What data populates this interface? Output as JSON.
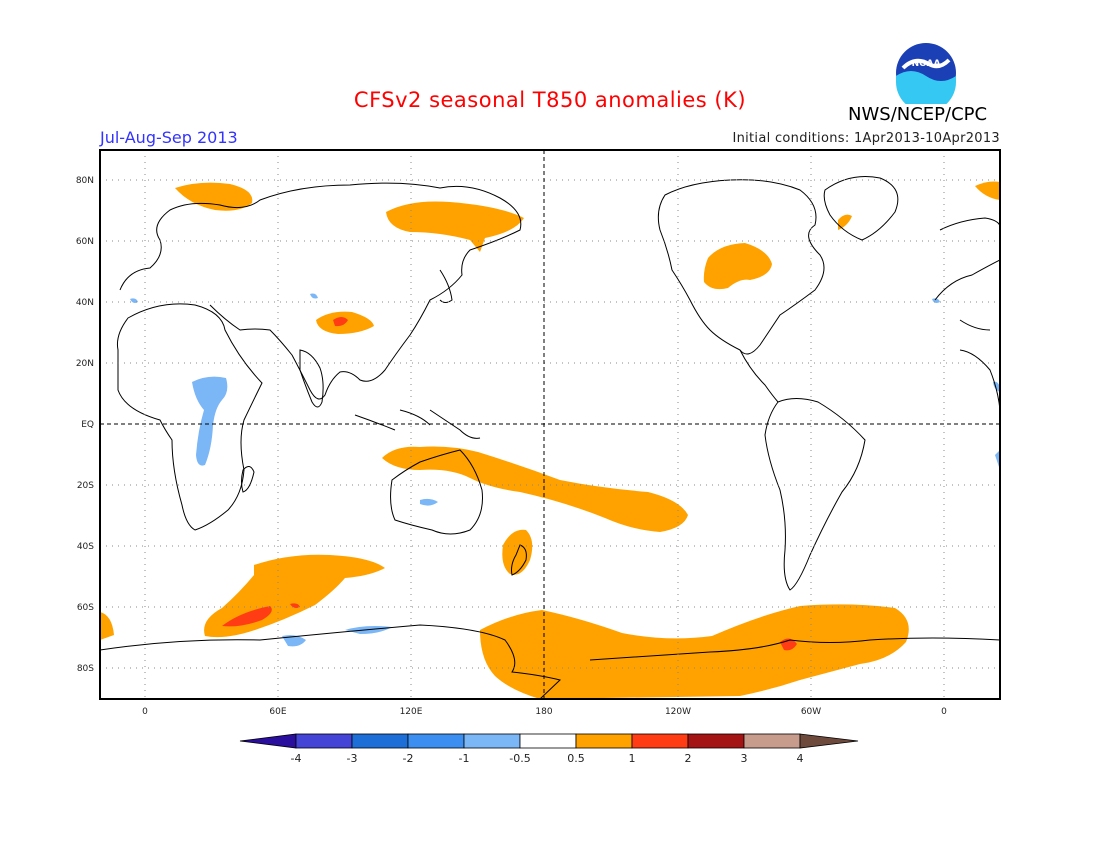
{
  "header": {
    "title": "CFSv2 seasonal T850 anomalies (K)",
    "period": "Jul-Aug-Sep 2013",
    "initial_conditions": "Initial conditions: 1Apr2013-10Apr2013",
    "agency": "NWS/NCEP/CPC",
    "logo_text": "NOAA"
  },
  "map": {
    "projection": "cylindrical equidistant",
    "lon_range": [
      -20,
      380
    ],
    "lat_range": [
      -90,
      90
    ],
    "lat_labels": [
      "80N",
      "60N",
      "40N",
      "20N",
      "EQ",
      "20S",
      "40S",
      "60S",
      "80S"
    ],
    "lon_labels": [
      "0",
      "60E",
      "120E",
      "180",
      "120W",
      "60W",
      "0"
    ]
  },
  "colorbar": {
    "labels": [
      "-4",
      "-3",
      "-2",
      "-1",
      "-0.5",
      "0.5",
      "1",
      "2",
      "3",
      "4"
    ],
    "colors": [
      "#2a0f9e",
      "#4444d6",
      "#1e6ed8",
      "#3c8ff0",
      "#7bb6f6",
      "#ffffff",
      "#ffa200",
      "#ff3c14",
      "#a51414",
      "#c89c8c",
      "#6e4a3c"
    ]
  },
  "anomaly_colors": {
    "cool_light": "#7bb6f6",
    "warm_light": "#ffa200",
    "warm_strong": "#ff3c14"
  }
}
